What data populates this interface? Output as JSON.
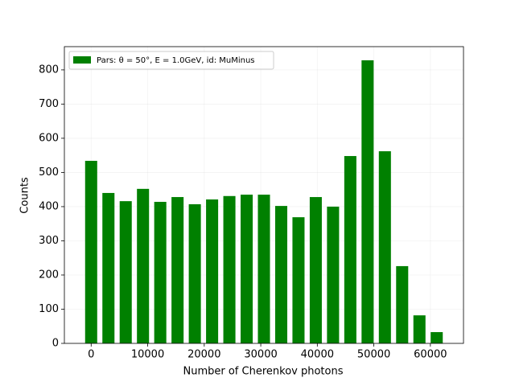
{
  "chart_data": {
    "type": "histogram",
    "xlabel": "Number of Cherenkov photons",
    "ylabel": "Counts",
    "bins": [
      -1528,
      1528,
      4584,
      7640,
      10696,
      13752,
      16808,
      19864,
      22920,
      25976,
      29032,
      32088,
      35144,
      38200,
      41256,
      44312,
      47368,
      50424,
      53480,
      56536,
      59592,
      62648
    ],
    "series": [
      {
        "name": "Pars: θ = 50°, E = 1.0GeV, id: MuMinus",
        "color": "#008000",
        "values": [
          534,
          440,
          416,
          452,
          414,
          428,
          407,
          421,
          431,
          435,
          435,
          402,
          369,
          428,
          400,
          548,
          828,
          562,
          226,
          82,
          33
        ]
      }
    ],
    "rwidth": 0.7,
    "xlim": [
      -4737,
      65857
    ],
    "xticks": [
      0,
      10000,
      20000,
      30000,
      40000,
      50000,
      60000
    ],
    "ylim": [
      0,
      868
    ],
    "yticks": [
      0,
      100,
      200,
      300,
      400,
      500,
      600,
      700,
      800
    ],
    "grid": true,
    "legend": "upper left"
  }
}
